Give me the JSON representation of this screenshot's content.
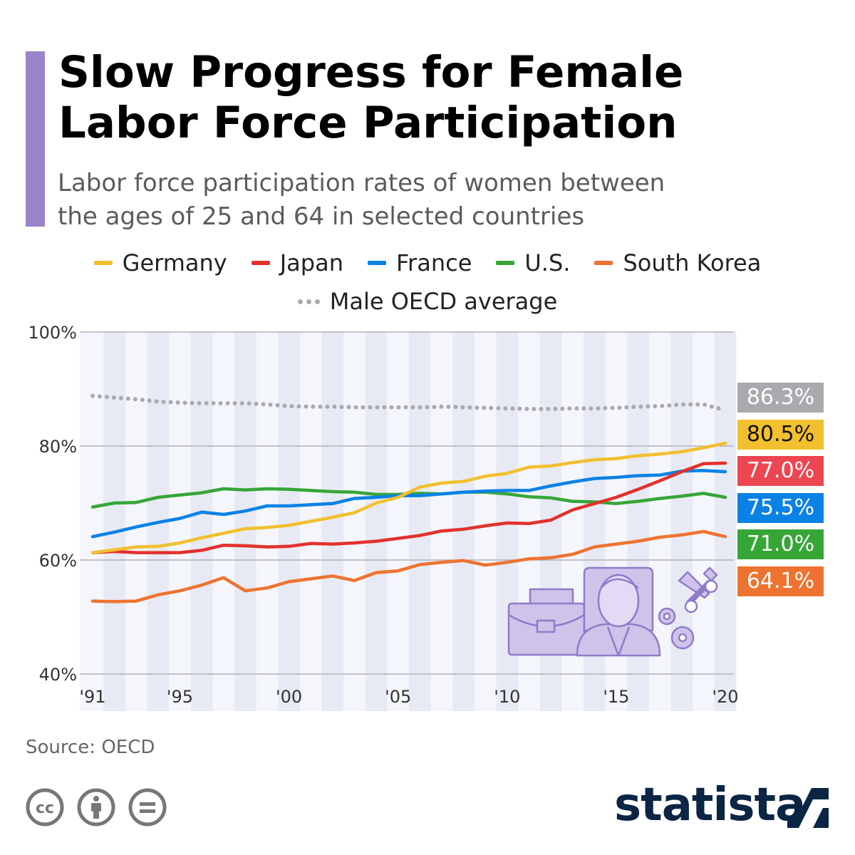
{
  "title": "Slow Progress for Female Labor Force Participation",
  "title_lines": [
    "Slow Progress for Female",
    "Labor Force Participation"
  ],
  "subtitle_lines": [
    "Labor force participation rates of women between",
    "the ages of 25 and 64 in selected countries"
  ],
  "source": "Source: OECD",
  "logo_text": "statista",
  "license_icons": [
    "cc-icon",
    "attribution-icon",
    "no-derivatives-icon"
  ],
  "colors": {
    "accent": "#9b84c9",
    "illustration": "#c9bde6"
  },
  "chart_data": {
    "type": "line",
    "title": "Slow Progress for Female Labor Force Participation",
    "x": [
      1991,
      1992,
      1993,
      1994,
      1995,
      1996,
      1997,
      1998,
      1999,
      2000,
      2001,
      2002,
      2003,
      2004,
      2005,
      2006,
      2007,
      2008,
      2009,
      2010,
      2011,
      2012,
      2013,
      2014,
      2015,
      2016,
      2017,
      2018,
      2019,
      2020
    ],
    "x_tick_values": [
      1991,
      1995,
      2000,
      2005,
      2010,
      2015,
      2020
    ],
    "x_tick_labels": [
      "'91",
      "'95",
      "'00",
      "'05",
      "'10",
      "'15",
      "'20"
    ],
    "ylim": [
      40,
      100
    ],
    "y_tick_values": [
      40,
      60,
      80,
      100
    ],
    "y_tick_labels": [
      "40%",
      "60%",
      "80%",
      "100%"
    ],
    "grid": true,
    "legend_placement": "top",
    "series": [
      {
        "name": "Germany",
        "color": "#f2c02f",
        "style": "solid",
        "end_label": "80.5%",
        "label_text_color": "#111111",
        "values": [
          61.3,
          61.8,
          62.3,
          62.4,
          63.0,
          63.9,
          64.7,
          65.5,
          65.7,
          66.1,
          66.8,
          67.5,
          68.3,
          70.0,
          71.0,
          72.8,
          73.5,
          73.8,
          74.7,
          75.2,
          76.3,
          76.5,
          77.1,
          77.6,
          77.8,
          78.3,
          78.6,
          79.0,
          79.7,
          80.5
        ]
      },
      {
        "name": "Japan",
        "color": "#e3312c",
        "style": "solid",
        "end_label": "77.0%",
        "label_color": "#ec4650",
        "label_text_color": "#ffffff",
        "values": [
          61.3,
          61.5,
          61.3,
          61.3,
          61.3,
          61.7,
          62.6,
          62.5,
          62.3,
          62.4,
          62.9,
          62.8,
          63.0,
          63.3,
          63.8,
          64.3,
          65.1,
          65.4,
          66.0,
          66.5,
          66.4,
          67.0,
          68.8,
          69.9,
          71.0,
          72.4,
          73.9,
          75.5,
          76.9,
          77.0
        ]
      },
      {
        "name": "France",
        "color": "#0a82e5",
        "style": "solid",
        "end_label": "75.5%",
        "label_text_color": "#ffffff",
        "values": [
          64.1,
          64.9,
          65.8,
          66.6,
          67.3,
          68.4,
          68.0,
          68.6,
          69.5,
          69.5,
          69.7,
          69.9,
          70.8,
          71.0,
          71.3,
          71.3,
          71.6,
          71.9,
          72.1,
          72.2,
          72.2,
          73.0,
          73.7,
          74.3,
          74.5,
          74.8,
          74.9,
          75.6,
          75.7,
          75.5
        ]
      },
      {
        "name": "U.S.",
        "color": "#36a637",
        "style": "solid",
        "end_label": "71.0%",
        "label_text_color": "#ffffff",
        "values": [
          69.3,
          70.0,
          70.1,
          71.0,
          71.4,
          71.8,
          72.5,
          72.3,
          72.5,
          72.4,
          72.2,
          72.0,
          71.9,
          71.5,
          71.5,
          71.7,
          71.6,
          71.9,
          71.9,
          71.6,
          71.1,
          70.9,
          70.3,
          70.2,
          69.9,
          70.3,
          70.8,
          71.2,
          71.7,
          71.0
        ]
      },
      {
        "name": "South Korea",
        "color": "#ee7330",
        "style": "solid",
        "end_label": "64.1%",
        "label_text_color": "#ffffff",
        "values": [
          52.8,
          52.7,
          52.8,
          53.9,
          54.6,
          55.6,
          56.9,
          54.6,
          55.1,
          56.2,
          56.7,
          57.2,
          56.4,
          57.8,
          58.1,
          59.2,
          59.6,
          59.9,
          59.1,
          59.6,
          60.2,
          60.4,
          61.0,
          62.3,
          62.8,
          63.3,
          64.0,
          64.4,
          65.0,
          64.1
        ]
      },
      {
        "name": "Male OECD average",
        "color": "#a9a9ae",
        "style": "dotted",
        "end_label": "86.3%",
        "label_text_color": "#ffffff",
        "values": [
          88.8,
          88.5,
          88.2,
          87.8,
          87.6,
          87.5,
          87.5,
          87.5,
          87.3,
          87.0,
          86.9,
          86.9,
          86.8,
          86.8,
          86.8,
          86.8,
          86.9,
          86.8,
          86.7,
          86.6,
          86.5,
          86.5,
          86.6,
          86.6,
          86.7,
          86.9,
          87.0,
          87.3,
          87.3,
          86.3
        ]
      }
    ]
  }
}
